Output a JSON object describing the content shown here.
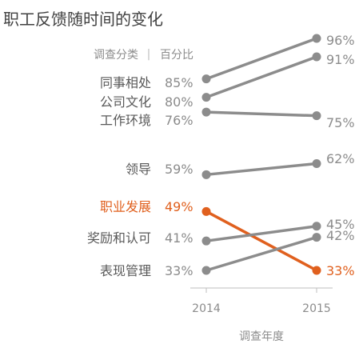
{
  "chart_data": {
    "type": "line",
    "title": "职工反馈随时间的变化",
    "header": {
      "category": "调查分类",
      "separator": "|",
      "value": "百分比"
    },
    "x": [
      "2014",
      "2015"
    ],
    "xlabel": "调查年度",
    "ylim": [
      30,
      100
    ],
    "value_suffix": "%",
    "series": [
      {
        "name": "同事相处",
        "values": [
          85,
          96
        ],
        "start_label": "85%",
        "end_label": "96%",
        "color": "#8c8c8c",
        "highlight": false
      },
      {
        "name": "公司文化",
        "values": [
          80,
          91
        ],
        "start_label": "80%",
        "end_label": "91%",
        "color": "#8c8c8c",
        "highlight": false
      },
      {
        "name": "工作环境",
        "values": [
          76,
          75
        ],
        "start_label": "76%",
        "end_label": "75%",
        "color": "#8c8c8c",
        "highlight": false
      },
      {
        "name": "领导",
        "values": [
          59,
          62
        ],
        "start_label": "59%",
        "end_label": "62%",
        "color": "#8c8c8c",
        "highlight": false
      },
      {
        "name": "职业发展",
        "values": [
          49,
          33
        ],
        "start_label": "49%",
        "end_label": "33%",
        "color": "#e0601e",
        "highlight": true
      },
      {
        "name": "奖励和认可",
        "values": [
          41,
          45
        ],
        "start_label": "41%",
        "end_label": "45%",
        "color": "#8c8c8c",
        "highlight": false
      },
      {
        "name": "表现管理",
        "values": [
          33,
          42
        ],
        "start_label": "33%",
        "end_label": "42%",
        "color": "#8c8c8c",
        "highlight": false
      }
    ],
    "grid": false,
    "legend": "none",
    "colors": {
      "text": "#595959",
      "muted": "#8c8c8c",
      "axis": "#bfbfbf",
      "highlight": "#e0601e"
    }
  }
}
